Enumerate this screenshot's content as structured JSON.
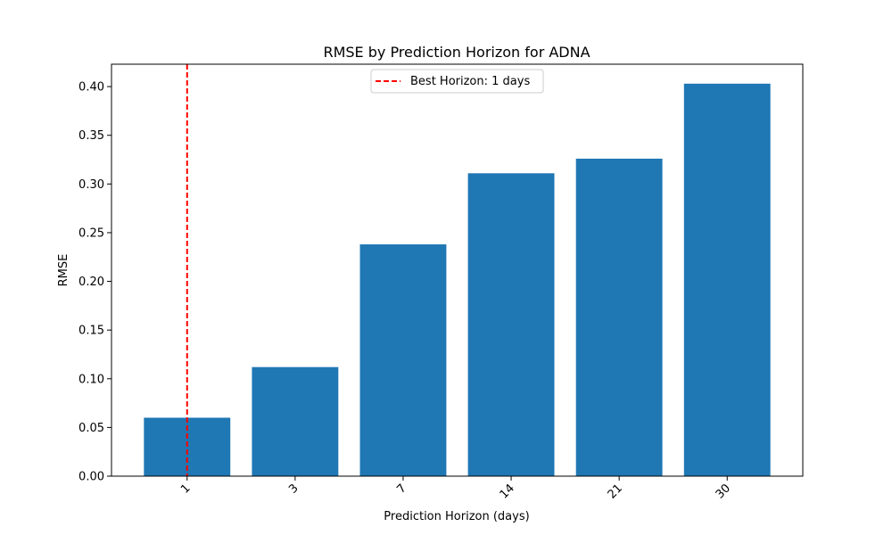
{
  "chart_data": {
    "type": "bar",
    "title": "RMSE by Prediction Horizon for ADNA",
    "xlabel": "Prediction Horizon (days)",
    "ylabel": "RMSE",
    "categories": [
      "1",
      "3",
      "7",
      "14",
      "21",
      "30"
    ],
    "values": [
      0.06,
      0.112,
      0.238,
      0.311,
      0.326,
      0.403
    ],
    "ylim": [
      0,
      0.423
    ],
    "yticks": [
      "0.00",
      "0.05",
      "0.10",
      "0.15",
      "0.20",
      "0.25",
      "0.30",
      "0.35",
      "0.40"
    ],
    "x_tick_rotation_deg": 45,
    "grid": false,
    "bar_color": "#1f77b4",
    "reference_line": {
      "category": "1",
      "label": "Best Horizon: 1 days",
      "color": "#ff0000",
      "style": "dashed"
    },
    "legend_position": "upper-center"
  }
}
